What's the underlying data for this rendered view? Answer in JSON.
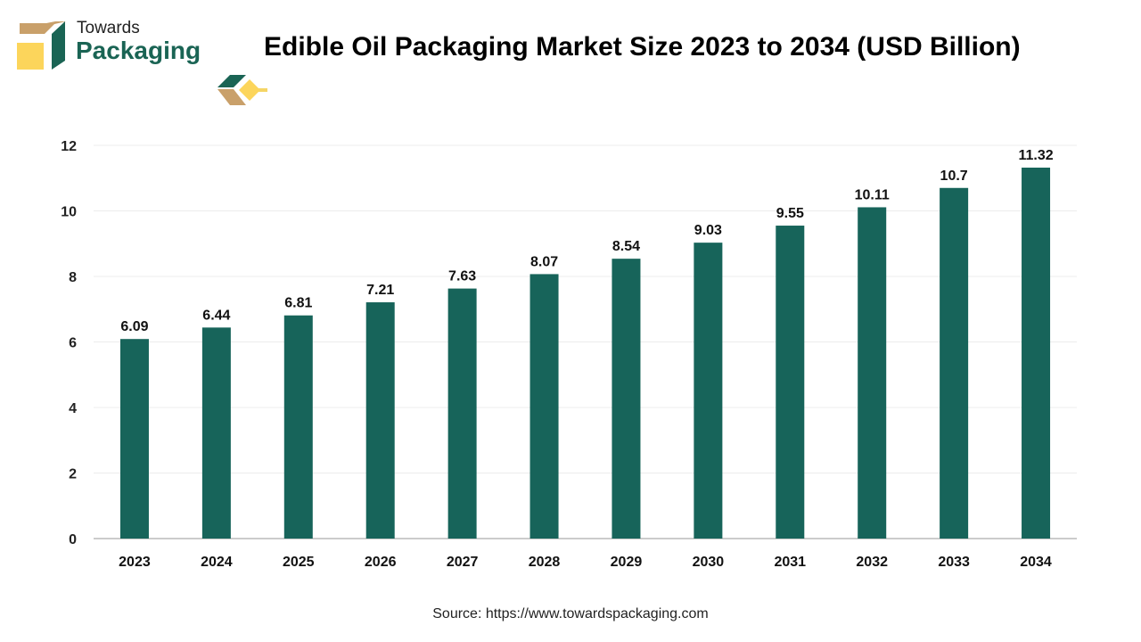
{
  "brand": {
    "line1": "Towards",
    "line2": "Packaging"
  },
  "title": "Edible Oil Packaging Market Size 2023 to 2034 (USD Billion)",
  "source": "Source: https://www.towardspackaging.com",
  "colors": {
    "bar": "#17645a",
    "accent_line": "#f5d565",
    "brand_green": "#1a6454",
    "brand_tan": "#c9a06a"
  },
  "chart_data": {
    "type": "bar",
    "categories": [
      "2023",
      "2024",
      "2025",
      "2026",
      "2027",
      "2028",
      "2029",
      "2030",
      "2031",
      "2032",
      "2033",
      "2034"
    ],
    "values": [
      6.09,
      6.44,
      6.81,
      7.21,
      7.63,
      8.07,
      8.54,
      9.03,
      9.55,
      10.11,
      10.7,
      11.32
    ],
    "data_labels": [
      "6.09",
      "6.44",
      "6.81",
      "7.21",
      "7.63",
      "8.07",
      "8.54",
      "9.03",
      "9.55",
      "10.11",
      "10.7",
      "11.32"
    ],
    "title": "Edible Oil Packaging Market Size 2023 to 2034 (USD Billion)",
    "xlabel": "",
    "ylabel": "",
    "ylim": [
      0,
      12
    ],
    "yticks": [
      0,
      2,
      4,
      6,
      8,
      10,
      12
    ],
    "grid": true,
    "legend": "none"
  }
}
